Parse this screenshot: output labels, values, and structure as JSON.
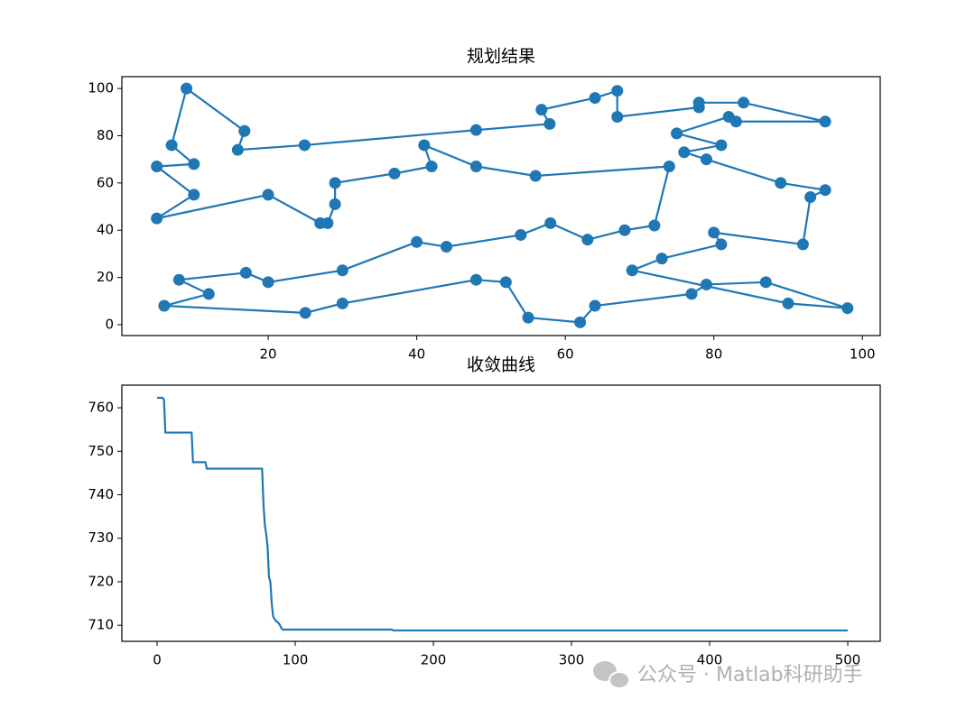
{
  "chart_data": [
    {
      "type": "line",
      "title": "规划结果",
      "markers": true,
      "color": "#1f77b4",
      "x": [
        16.8,
        15.9,
        24.9,
        48,
        57.9,
        56.8,
        64,
        67,
        67,
        78,
        78,
        84,
        95,
        83,
        82,
        75,
        81,
        76,
        79,
        89,
        95,
        93,
        92,
        80,
        81,
        73,
        69,
        90,
        98,
        87,
        79,
        77,
        64,
        62,
        55,
        52,
        48,
        30,
        25,
        6,
        12,
        8,
        17,
        20,
        30,
        40,
        44,
        54,
        58,
        63,
        68,
        72,
        74,
        56,
        48,
        41,
        42,
        37,
        29,
        29,
        28,
        27,
        20,
        5,
        10,
        5,
        10,
        7,
        9,
        16.8
      ],
      "values": [
        82,
        74,
        76,
        82.4,
        85,
        91,
        96,
        99,
        88,
        92,
        94,
        94,
        86,
        86,
        88,
        81,
        76,
        73,
        70,
        60,
        57,
        54,
        34,
        39,
        34,
        28,
        23,
        9,
        7,
        18,
        17,
        13,
        8,
        1,
        3,
        18,
        19,
        9,
        5,
        8,
        13,
        19,
        22,
        18,
        23,
        35,
        33,
        38,
        43,
        36,
        40,
        42,
        67,
        63,
        67,
        76,
        67,
        64,
        60,
        51,
        43,
        43,
        55,
        45,
        55,
        67,
        68,
        76,
        100,
        82
      ],
      "xlim": [
        0.3,
        102.4
      ],
      "ylim": [
        -4.6,
        105
      ],
      "xticks": [
        20,
        40,
        60,
        80,
        100
      ],
      "yticks": [
        0,
        20,
        40,
        60,
        80,
        100
      ]
    },
    {
      "type": "line",
      "title": "收敛曲线",
      "markers": false,
      "color": "#1f77b4",
      "x": [
        0,
        4,
        5,
        6,
        25,
        26,
        35,
        36,
        76,
        77,
        78,
        79,
        80,
        81,
        82,
        83,
        84,
        85,
        86,
        88,
        89,
        90,
        91,
        170,
        171,
        500
      ],
      "values": [
        762.3,
        762.3,
        761.8,
        754.3,
        754.3,
        747.5,
        747.5,
        746,
        746,
        738,
        733,
        731,
        728,
        721,
        720,
        715,
        712,
        711.5,
        711,
        710.5,
        710,
        709.3,
        709,
        709,
        708.8,
        708.8
      ],
      "xlim": [
        -25.5,
        523.5
      ],
      "ylim": [
        706.3,
        765.2
      ],
      "xticks": [
        0,
        100,
        200,
        300,
        400,
        500
      ],
      "yticks": [
        710,
        720,
        730,
        740,
        750,
        760
      ]
    }
  ],
  "watermark": "公众号 · Matlab科研助手"
}
